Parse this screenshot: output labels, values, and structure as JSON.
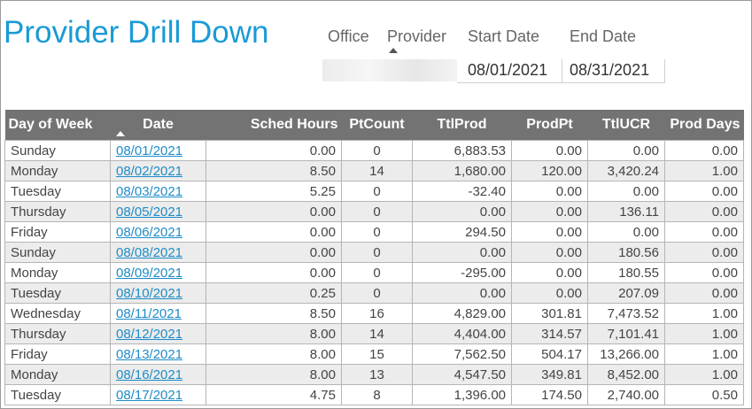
{
  "title": "Provider Drill Down",
  "filters": {
    "office_label": "Office",
    "provider_label": "Provider",
    "start_label": "Start Date",
    "end_label": "End Date",
    "start_value": "08/01/2021",
    "end_value": "08/31/2021"
  },
  "table": {
    "headers": [
      "Day of Week",
      "Date",
      "Sched Hours",
      "PtCount",
      "TtlProd",
      "ProdPt",
      "TtlUCR",
      "Prod Days"
    ],
    "sorted_column": "Date",
    "rows": [
      [
        "Sunday",
        "08/01/2021",
        "0.00",
        "0",
        "6,883.53",
        "0.00",
        "0.00",
        "0.00"
      ],
      [
        "Monday",
        "08/02/2021",
        "8.50",
        "14",
        "1,680.00",
        "120.00",
        "3,420.24",
        "1.00"
      ],
      [
        "Tuesday",
        "08/03/2021",
        "5.25",
        "0",
        "-32.40",
        "0.00",
        "0.00",
        "0.00"
      ],
      [
        "Thursday",
        "08/05/2021",
        "0.00",
        "0",
        "0.00",
        "0.00",
        "136.11",
        "0.00"
      ],
      [
        "Friday",
        "08/06/2021",
        "0.00",
        "0",
        "294.50",
        "0.00",
        "0.00",
        "0.00"
      ],
      [
        "Sunday",
        "08/08/2021",
        "0.00",
        "0",
        "0.00",
        "0.00",
        "180.56",
        "0.00"
      ],
      [
        "Monday",
        "08/09/2021",
        "0.00",
        "0",
        "-295.00",
        "0.00",
        "180.55",
        "0.00"
      ],
      [
        "Tuesday",
        "08/10/2021",
        "0.25",
        "0",
        "0.00",
        "0.00",
        "207.09",
        "0.00"
      ],
      [
        "Wednesday",
        "08/11/2021",
        "8.50",
        "16",
        "4,829.00",
        "301.81",
        "7,473.52",
        "1.00"
      ],
      [
        "Thursday",
        "08/12/2021",
        "8.00",
        "14",
        "4,404.00",
        "314.57",
        "7,101.41",
        "1.00"
      ],
      [
        "Friday",
        "08/13/2021",
        "8.00",
        "15",
        "7,562.50",
        "504.17",
        "13,266.00",
        "1.00"
      ],
      [
        "Monday",
        "08/16/2021",
        "8.00",
        "13",
        "4,547.50",
        "349.81",
        "8,452.00",
        "1.00"
      ],
      [
        "Tuesday",
        "08/17/2021",
        "4.75",
        "8",
        "1,396.00",
        "174.50",
        "2,740.00",
        "0.50"
      ]
    ]
  },
  "colors": {
    "title": "#1a9ad6",
    "header_bg": "#737373",
    "alt_row": "#ececec",
    "link": "#1e8cc8"
  }
}
